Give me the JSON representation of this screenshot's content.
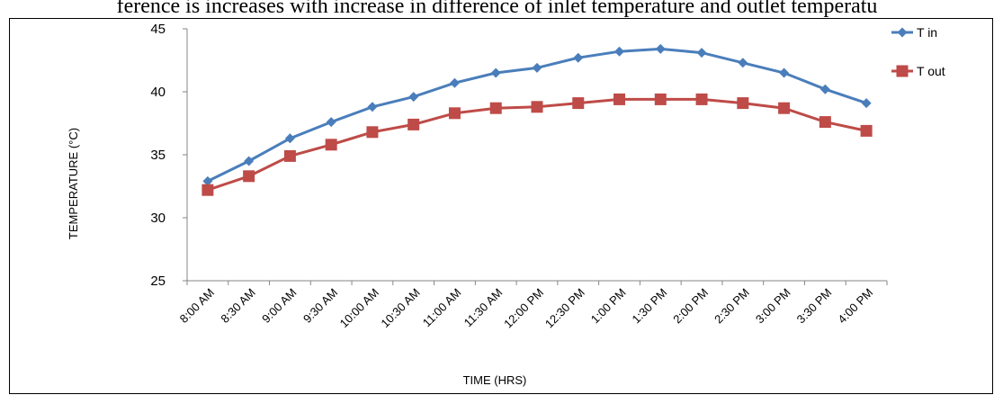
{
  "header_text": "ference is increases with increase in difference of inlet temperature and outlet temperatu",
  "chart_data": {
    "type": "line",
    "title": "",
    "xlabel": "TIME (HRS)",
    "ylabel": "TEMPERATURE (°C)",
    "ylim": [
      25,
      45
    ],
    "yticks": [
      25,
      30,
      35,
      40,
      45
    ],
    "grid": false,
    "legend_position": "top-right",
    "categories": [
      "8:00 AM",
      "8:30 AM",
      "9:00 AM",
      "9:30 AM",
      "10:00 AM",
      "10:30 AM",
      "11:00 AM",
      "11:30 AM",
      "12:00 PM",
      "12:30 PM",
      "1:00 PM",
      "1:30 PM",
      "2:00 PM",
      "2:30 PM",
      "3:00 PM",
      "3:30 PM",
      "4:00 PM"
    ],
    "series": [
      {
        "name": "T in",
        "color": "#4a7ebb",
        "marker": "diamond",
        "values": [
          32.9,
          34.5,
          36.3,
          37.6,
          38.8,
          39.6,
          40.7,
          41.5,
          41.9,
          42.7,
          43.2,
          43.4,
          43.1,
          42.3,
          41.5,
          40.2,
          39.1
        ]
      },
      {
        "name": "T out",
        "color": "#be4b48",
        "marker": "square",
        "values": [
          32.2,
          33.3,
          34.9,
          35.8,
          36.8,
          37.4,
          38.3,
          38.7,
          38.8,
          39.1,
          39.4,
          39.4,
          39.4,
          39.1,
          38.7,
          37.6,
          36.9
        ]
      }
    ]
  }
}
